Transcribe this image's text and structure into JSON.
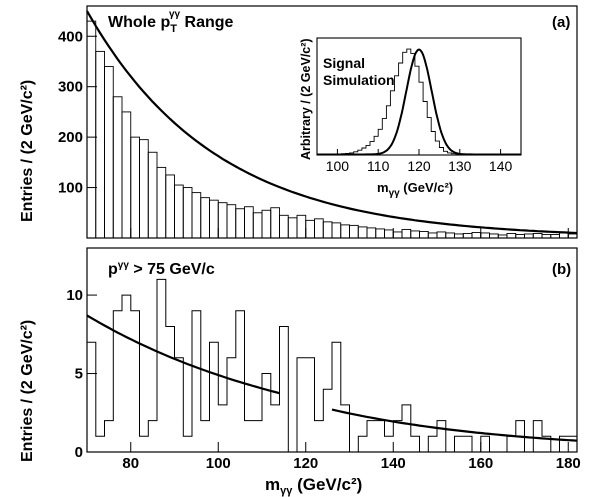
{
  "chart_data": [
    {
      "type": "histogram",
      "panel": "(a)",
      "title": "Whole p",
      "title_sub": "T",
      "title_sup": "γγ",
      "title_rest": " Range",
      "ylabel": "Entries / (2 GeV/c²)",
      "xlim": [
        70,
        182
      ],
      "ylim": [
        0,
        460
      ],
      "yticks": [
        100,
        200,
        300,
        400
      ],
      "bin_width": 2,
      "values": [
        430,
        370,
        340,
        280,
        250,
        200,
        195,
        170,
        140,
        125,
        105,
        100,
        90,
        80,
        75,
        70,
        66,
        58,
        62,
        50,
        55,
        60,
        45,
        40,
        45,
        35,
        38,
        32,
        30,
        26,
        25,
        22,
        20,
        18,
        16,
        12,
        17,
        14,
        13,
        10,
        12,
        10,
        8,
        9,
        11,
        10,
        8,
        6,
        9,
        7,
        8,
        9,
        7,
        7,
        10,
        8
      ],
      "fit": {
        "type": "exponential",
        "points": [
          [
            70,
            450
          ],
          [
            80,
            290
          ],
          [
            90,
            190
          ],
          [
            100,
            128
          ],
          [
            110,
            88
          ],
          [
            120,
            62
          ],
          [
            130,
            45
          ],
          [
            140,
            33
          ],
          [
            150,
            25
          ],
          [
            160,
            19
          ],
          [
            170,
            14
          ],
          [
            182,
            10
          ]
        ]
      },
      "inset": {
        "label_line1": "Signal",
        "label_line2": "Simulation",
        "ylabel": "Arbitrary / (2 GeV/c²)",
        "xlabel": "m",
        "xlabel_sub": "γγ",
        "xlabel_rest": " (GeV/c²)",
        "xlim": [
          95,
          145
        ],
        "xticks": [
          100,
          110,
          120,
          130,
          140
        ],
        "bin_width": 1,
        "values": [
          0.3,
          0.3,
          0.5,
          0.6,
          0.8,
          1.0,
          1.2,
          1.5,
          2.0,
          3.0,
          4.5,
          6.5,
          9.0,
          12.5,
          17.5,
          24.0,
          34.0,
          46.0,
          60.0,
          74.0,
          86.0,
          96.0,
          99.0,
          95.0,
          83.0,
          68.0,
          50.0,
          35.0,
          22.0,
          13.0,
          7.0,
          3.5,
          2.0,
          1.2,
          1.0,
          0.6,
          0.4,
          0.3,
          0.2,
          0.2,
          0.1,
          0.1,
          0.1,
          0.1,
          0.1,
          0.1,
          0.1,
          0.1,
          0.1,
          0.1
        ],
        "ymax": 100,
        "fit": {
          "type": "gaussian",
          "mean": 120,
          "sigma": 3.1,
          "amp": 98,
          "baseline": 0.5
        }
      }
    },
    {
      "type": "histogram",
      "panel": "(b)",
      "title": "p",
      "title_sup": "γγ",
      "title_rest": " > 75 GeV/c",
      "ylabel": "Entries / (2 GeV/c²)",
      "xlabel": "m",
      "xlabel_sub": "γγ",
      "xlabel_rest": " (GeV/c²)",
      "xlim": [
        70,
        182
      ],
      "ylim": [
        0,
        13
      ],
      "yticks": [
        0,
        5,
        10
      ],
      "xticks": [
        80,
        100,
        120,
        140,
        160,
        180
      ],
      "bin_width": 2,
      "values": [
        7,
        1,
        2,
        9,
        10,
        9,
        1,
        2,
        11,
        8,
        6,
        1,
        9,
        2,
        7,
        3,
        6,
        9,
        2,
        2,
        5,
        3,
        8,
        0,
        6,
        6,
        2,
        4,
        7,
        3,
        0,
        1,
        2,
        2,
        1,
        2,
        3,
        1,
        0,
        1,
        2,
        0,
        1,
        1,
        0,
        1,
        0,
        0,
        1,
        2,
        0,
        2,
        1,
        0,
        1,
        1
      ],
      "fits": [
        {
          "range": [
            70,
            114
          ],
          "points": [
            [
              70,
              8.7
            ],
            [
              80,
              7.2
            ],
            [
              90,
              6.0
            ],
            [
              100,
              5.0
            ],
            [
              110,
              4.1
            ],
            [
              114,
              3.75
            ]
          ]
        },
        {
          "range": [
            126,
            182
          ],
          "points": [
            [
              126,
              2.7
            ],
            [
              135,
              2.2
            ],
            [
              145,
              1.8
            ],
            [
              155,
              1.45
            ],
            [
              165,
              1.15
            ],
            [
              175,
              0.9
            ],
            [
              182,
              0.72
            ]
          ]
        }
      ]
    }
  ]
}
